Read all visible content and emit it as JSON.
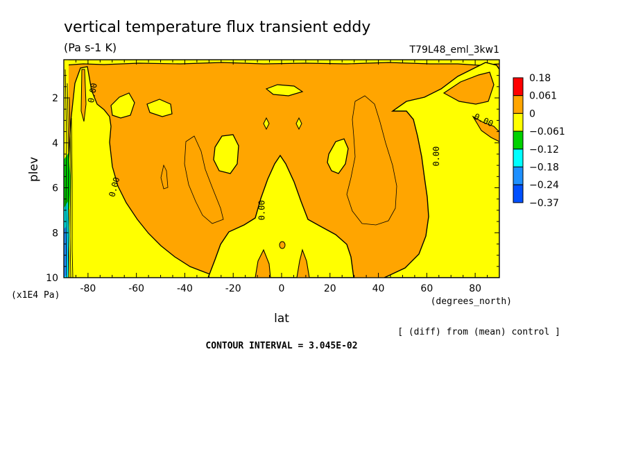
{
  "chart_data": {
    "type": "heatmap",
    "title": "vertical temperature flux transient eddy",
    "units": "(Pa s-1 K)",
    "run_label": "T79L48_eml_3kw1",
    "xlabel": "lat",
    "x_unit_label": "(degrees_north)",
    "ylabel": "plev",
    "y_unit_label": "(x1E4 Pa)",
    "xlim": [
      -90,
      90
    ],
    "ylim": [
      10,
      0.3
    ],
    "x_ticks": [
      {
        "value": -80,
        "label": "-80"
      },
      {
        "value": -60,
        "label": "-60"
      },
      {
        "value": -40,
        "label": "-40"
      },
      {
        "value": -20,
        "label": "-20"
      },
      {
        "value": 0,
        "label": "0"
      },
      {
        "value": 20,
        "label": "20"
      },
      {
        "value": 40,
        "label": "40"
      },
      {
        "value": 60,
        "label": "60"
      },
      {
        "value": 80,
        "label": "80"
      }
    ],
    "y_ticks": [
      {
        "value": 2,
        "label": "2"
      },
      {
        "value": 4,
        "label": "4"
      },
      {
        "value": 6,
        "label": "6"
      },
      {
        "value": 8,
        "label": "8"
      },
      {
        "value": 10,
        "label": "10"
      }
    ],
    "colorbar": {
      "levels": [
        "0.18",
        "0.061",
        "0",
        "-0.061",
        "-0.12",
        "-0.18",
        "-0.24",
        "-0.37"
      ],
      "colors": [
        "#ff0000",
        "#ffa500",
        "#ffff00",
        "#00d200",
        "#00ffff",
        "#1e90ff",
        "#0050ff"
      ]
    },
    "contour_labels": [
      {
        "text": "0.00",
        "lat": -77,
        "plev": 1.8,
        "angle": -80
      },
      {
        "text": "0.00",
        "lat": -68,
        "plev": 6.0,
        "angle": -75
      },
      {
        "text": "0.00",
        "lat": -7,
        "plev": 7.0,
        "angle": -90
      },
      {
        "text": "0.00",
        "lat": 65,
        "plev": 4.6,
        "angle": -90
      },
      {
        "text": "0.00",
        "lat": 83,
        "plev": 3.1,
        "angle": 25
      }
    ],
    "footnote": "[ (diff) from (mean) control ]",
    "contour_interval_text": "CONTOUR INTERVAL = 3.045E-02"
  }
}
